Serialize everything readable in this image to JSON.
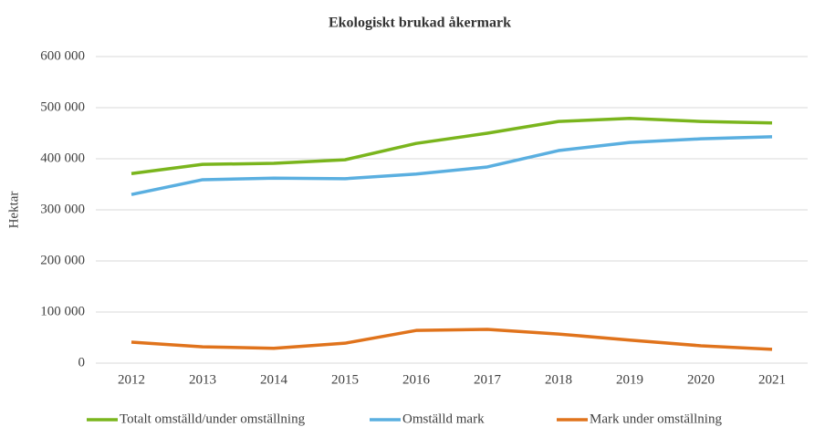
{
  "chart_data": {
    "type": "line",
    "title": "Ekologiskt brukad åkermark",
    "y_label": "Hektar",
    "categories": [
      "2012",
      "2013",
      "2014",
      "2015",
      "2016",
      "2017",
      "2018",
      "2019",
      "2020",
      "2021"
    ],
    "series": [
      {
        "name": "Totalt omställd/under omställning",
        "color": "#7ab51d",
        "values": [
          371000,
          389000,
          391000,
          398000,
          430000,
          450000,
          473000,
          479000,
          473000,
          470000
        ]
      },
      {
        "name": "Omställd mark",
        "color": "#5aafe0",
        "values": [
          330000,
          359000,
          362000,
          361000,
          370000,
          384000,
          416000,
          432000,
          439000,
          443000
        ]
      },
      {
        "name": "Mark under omställning",
        "color": "#e0731c",
        "values": [
          41000,
          32000,
          29000,
          39000,
          64000,
          66000,
          57000,
          45000,
          34000,
          27000
        ]
      }
    ],
    "ylim": [
      0,
      600000
    ],
    "yticks": [
      0,
      {
        "value": 100000,
        "label": "100 000"
      },
      {
        "value": 200000,
        "label": "200 000"
      },
      {
        "value": 300000,
        "label": "300 000"
      },
      {
        "value": 400000,
        "label": "400 000"
      },
      {
        "value": 500000,
        "label": "500 000"
      },
      {
        "value": 600000,
        "label": "600 000"
      }
    ],
    "grid": true,
    "legend": "bottom"
  }
}
